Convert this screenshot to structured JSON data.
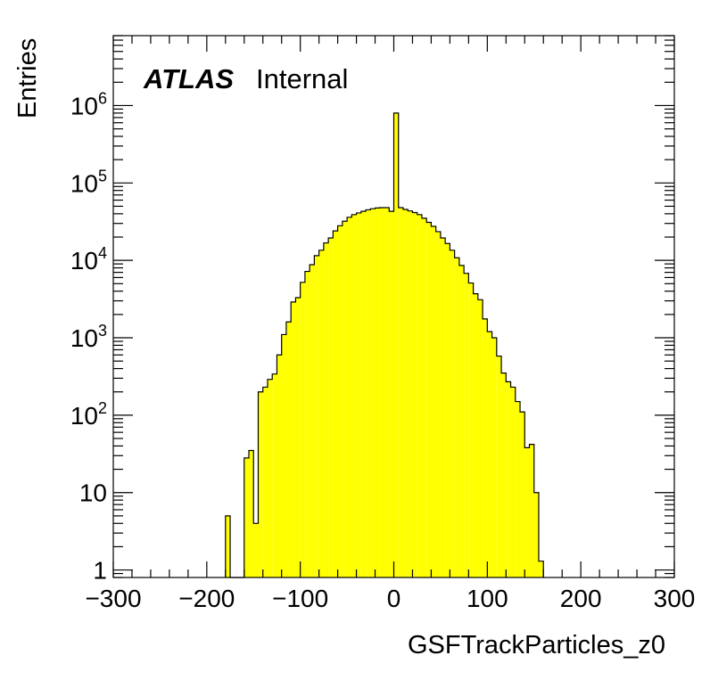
{
  "chart_data": {
    "type": "bar",
    "title": "",
    "xlabel": "GSFTrackParticles_z0",
    "ylabel": "Entries",
    "annotation": {
      "experiment": "ATLAS",
      "status": "Internal"
    },
    "xlim": [
      -300,
      300
    ],
    "ylim": [
      0.8,
      8000000
    ],
    "yscale": "log",
    "bin_width": 5,
    "fill_color": "#ffff00",
    "line_color": "#000000",
    "x_ticks": [
      {
        "value": -300,
        "label": "−300"
      },
      {
        "value": -200,
        "label": "−200"
      },
      {
        "value": -100,
        "label": "−100"
      },
      {
        "value": 0,
        "label": "0"
      },
      {
        "value": 100,
        "label": "100"
      },
      {
        "value": 200,
        "label": "200"
      },
      {
        "value": 300,
        "label": "300"
      }
    ],
    "y_ticks": [
      {
        "value": 1,
        "base": "1",
        "exp": ""
      },
      {
        "value": 10,
        "base": "10",
        "exp": ""
      },
      {
        "value": 100,
        "base": "10",
        "exp": "2"
      },
      {
        "value": 1000,
        "base": "10",
        "exp": "3"
      },
      {
        "value": 10000,
        "base": "10",
        "exp": "4"
      },
      {
        "value": 100000,
        "base": "10",
        "exp": "5"
      },
      {
        "value": 1000000,
        "base": "10",
        "exp": "6"
      }
    ],
    "bins": [
      {
        "x": -180,
        "y": 5
      },
      {
        "x": -175,
        "y": 0
      },
      {
        "x": -170,
        "y": 0
      },
      {
        "x": -165,
        "y": 0
      },
      {
        "x": -160,
        "y": 28
      },
      {
        "x": -155,
        "y": 35
      },
      {
        "x": -150,
        "y": 4
      },
      {
        "x": -145,
        "y": 200
      },
      {
        "x": -140,
        "y": 230
      },
      {
        "x": -135,
        "y": 290
      },
      {
        "x": -130,
        "y": 340
      },
      {
        "x": -125,
        "y": 600
      },
      {
        "x": -120,
        "y": 1100
      },
      {
        "x": -115,
        "y": 1600
      },
      {
        "x": -110,
        "y": 2900
      },
      {
        "x": -105,
        "y": 3300
      },
      {
        "x": -100,
        "y": 5200
      },
      {
        "x": -95,
        "y": 7200
      },
      {
        "x": -90,
        "y": 8800
      },
      {
        "x": -85,
        "y": 11500
      },
      {
        "x": -80,
        "y": 13500
      },
      {
        "x": -75,
        "y": 16800
      },
      {
        "x": -70,
        "y": 19500
      },
      {
        "x": -65,
        "y": 24000
      },
      {
        "x": -60,
        "y": 28000
      },
      {
        "x": -55,
        "y": 32000
      },
      {
        "x": -50,
        "y": 36000
      },
      {
        "x": -45,
        "y": 39000
      },
      {
        "x": -40,
        "y": 41000
      },
      {
        "x": -35,
        "y": 43000
      },
      {
        "x": -30,
        "y": 45000
      },
      {
        "x": -25,
        "y": 46500
      },
      {
        "x": -20,
        "y": 47500
      },
      {
        "x": -15,
        "y": 48000
      },
      {
        "x": -10,
        "y": 48000
      },
      {
        "x": -5,
        "y": 43000
      },
      {
        "x": 0,
        "y": 800000
      },
      {
        "x": 5,
        "y": 48000
      },
      {
        "x": 10,
        "y": 45500
      },
      {
        "x": 15,
        "y": 43500
      },
      {
        "x": 20,
        "y": 41500
      },
      {
        "x": 25,
        "y": 39000
      },
      {
        "x": 30,
        "y": 35000
      },
      {
        "x": 35,
        "y": 31000
      },
      {
        "x": 40,
        "y": 27500
      },
      {
        "x": 45,
        "y": 23500
      },
      {
        "x": 50,
        "y": 19500
      },
      {
        "x": 55,
        "y": 16500
      },
      {
        "x": 60,
        "y": 13500
      },
      {
        "x": 65,
        "y": 10800
      },
      {
        "x": 70,
        "y": 8600
      },
      {
        "x": 75,
        "y": 6800
      },
      {
        "x": 80,
        "y": 5100
      },
      {
        "x": 85,
        "y": 3700
      },
      {
        "x": 90,
        "y": 3100
      },
      {
        "x": 95,
        "y": 1750
      },
      {
        "x": 100,
        "y": 1200
      },
      {
        "x": 105,
        "y": 1000
      },
      {
        "x": 110,
        "y": 580
      },
      {
        "x": 115,
        "y": 350
      },
      {
        "x": 120,
        "y": 270
      },
      {
        "x": 125,
        "y": 230
      },
      {
        "x": 130,
        "y": 150
      },
      {
        "x": 135,
        "y": 110
      },
      {
        "x": 140,
        "y": 38
      },
      {
        "x": 145,
        "y": 42
      },
      {
        "x": 150,
        "y": 10
      },
      {
        "x": 155,
        "y": 1.3
      }
    ]
  }
}
